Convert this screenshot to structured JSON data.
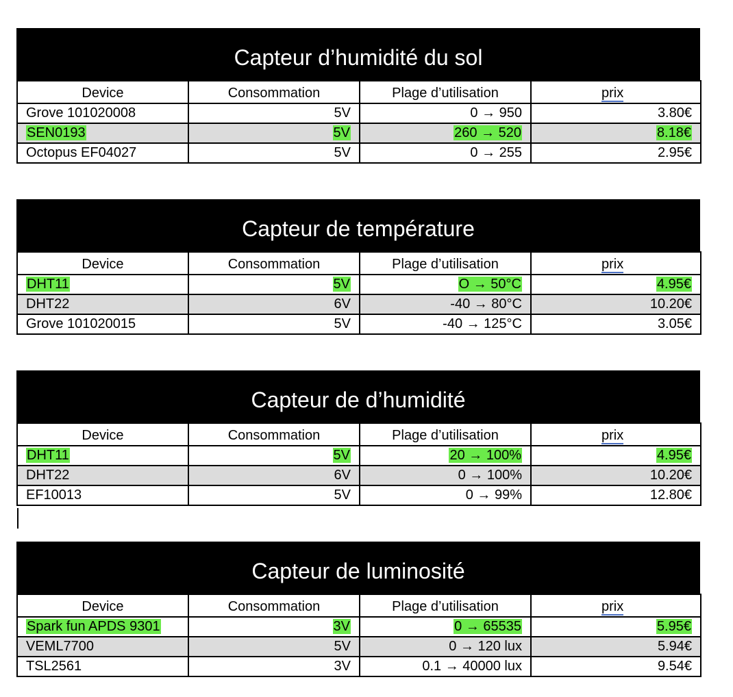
{
  "headers": {
    "device": "Device",
    "consommation": "Consommation",
    "plage": "Plage d’utilisation",
    "prix": "prix"
  },
  "tables": [
    {
      "title": "Capteur d’humidité du sol",
      "rows": [
        {
          "device": "Grove 101020008",
          "conso": "5V",
          "plage": "0 → 950",
          "prix": "3.80€",
          "highlighted": false,
          "shaded": false
        },
        {
          "device": "SEN0193",
          "conso": "5V",
          "plage": "260 → 520",
          "prix": "8.18€",
          "highlighted": true,
          "shaded": true
        },
        {
          "device": "Octopus EF04027",
          "conso": "5V",
          "plage": "0 → 255",
          "prix": "2.95€",
          "highlighted": false,
          "shaded": false
        }
      ]
    },
    {
      "title": "Capteur de température",
      "rows": [
        {
          "device": "DHT11",
          "conso": "5V",
          "plage": "O → 50°C",
          "prix": "4.95€",
          "highlighted": true,
          "shaded": false
        },
        {
          "device": "DHT22",
          "conso": "6V",
          "plage": "-40 → 80°C",
          "prix": "10.20€",
          "highlighted": false,
          "shaded": true
        },
        {
          "device": "Grove 101020015",
          "conso": "5V",
          "plage": "-40 → 125°C",
          "prix": "3.05€",
          "highlighted": false,
          "shaded": false
        }
      ]
    },
    {
      "title": "Capteur de d’humidité",
      "rows": [
        {
          "device": "DHT11",
          "conso": "5V",
          "plage": "20 → 100%",
          "prix": "4.95€",
          "highlighted": true,
          "shaded": false
        },
        {
          "device": "DHT22",
          "conso": "6V",
          "plage": "0 → 100%",
          "prix": "10.20€",
          "highlighted": false,
          "shaded": true
        },
        {
          "device": "EF10013",
          "conso": "5V",
          "plage": "0 → 99%",
          "prix": "12.80€",
          "highlighted": false,
          "shaded": false
        }
      ]
    },
    {
      "title": "Capteur de luminosité",
      "rows": [
        {
          "device": "Spark fun APDS 9301",
          "conso": "3V",
          "plage": "0 → 65535",
          "prix": "5.95€",
          "highlighted": true,
          "shaded": false
        },
        {
          "device": "VEML7700",
          "conso": "5V",
          "plage": "0 → 120 lux",
          "prix": "5.94€",
          "highlighted": false,
          "shaded": true
        },
        {
          "device": "TSL2561",
          "conso": "3V",
          "plage": "0.1 → 40000 lux",
          "prix": "9.54€",
          "highlighted": false,
          "shaded": false
        }
      ]
    }
  ],
  "colors": {
    "highlight": "#6bea4a",
    "shaded_row": "#dcdcdc",
    "title_bar": "#000000"
  }
}
